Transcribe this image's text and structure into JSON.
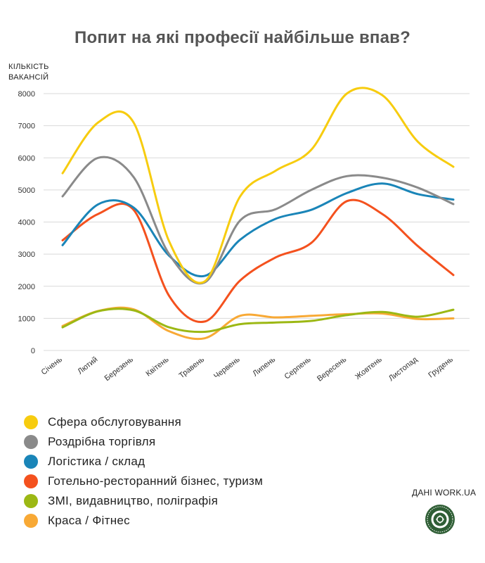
{
  "chart_data": {
    "type": "line",
    "title": "Попит на які професії найбільше впав?",
    "ylabel_lines": [
      "КІЛЬКІСТЬ",
      "ВАКАНСІЙ"
    ],
    "xlabel": "",
    "categories": [
      "Січень",
      "Лютий",
      "Березень",
      "Квітень",
      "Травень",
      "Червень",
      "Липень",
      "Серпень",
      "Вересень",
      "Жовтень",
      "Листопад",
      "Грудень"
    ],
    "ylim": [
      0,
      8000
    ],
    "yticks": [
      0,
      1000,
      2000,
      3000,
      4000,
      5000,
      6000,
      7000,
      8000
    ],
    "grid": true,
    "legend_position": "bottom",
    "series": [
      {
        "name": "Сфера обслуговування",
        "color": "#f7cc0f",
        "values": [
          5520,
          7100,
          7100,
          3400,
          2150,
          4800,
          5600,
          6250,
          8000,
          7950,
          6500,
          5720
        ]
      },
      {
        "name": "Роздрібна торгівля",
        "color": "#8a8a8a",
        "values": [
          4800,
          6000,
          5400,
          3000,
          2120,
          4050,
          4400,
          5000,
          5430,
          5380,
          5070,
          4560
        ]
      },
      {
        "name": "Логістика / склад",
        "color": "#1a85b8",
        "values": [
          3280,
          4550,
          4450,
          2950,
          2320,
          3450,
          4100,
          4380,
          4900,
          5200,
          4870,
          4700
        ]
      },
      {
        "name": "Готельно-ресторанний бізнес, туризм",
        "color": "#f4511e",
        "values": [
          3430,
          4250,
          4380,
          1700,
          900,
          2180,
          2900,
          3350,
          4650,
          4250,
          3250,
          2350
        ]
      },
      {
        "name": "ЗМІ, видавництво, поліграфія",
        "color": "#9cb814",
        "values": [
          720,
          1220,
          1250,
          720,
          580,
          820,
          870,
          920,
          1100,
          1200,
          1050,
          1270
        ]
      },
      {
        "name": "Краса / Фітнес",
        "color": "#f8a935",
        "values": [
          760,
          1230,
          1280,
          600,
          380,
          1080,
          1030,
          1080,
          1130,
          1150,
          980,
          1000
        ]
      }
    ]
  },
  "source_label": "ДАНІ WORK.UA"
}
